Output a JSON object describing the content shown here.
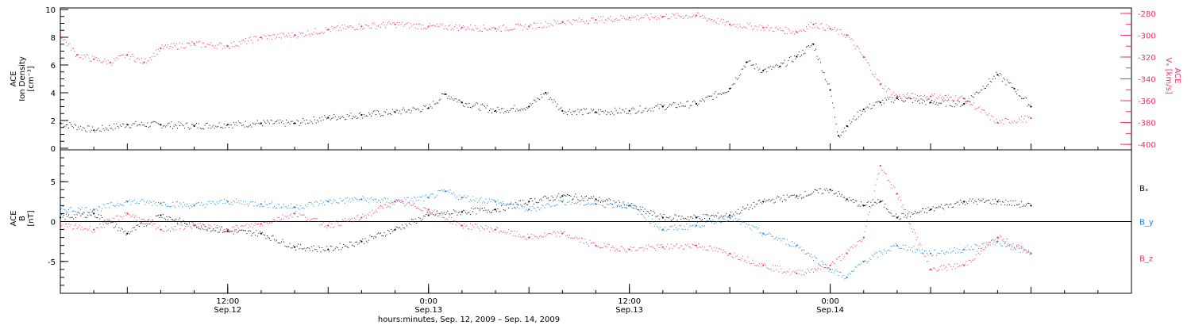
{
  "colors": {
    "black": "#000000",
    "pink": "#e8336b",
    "blue": "#1a7fd0",
    "frame": "#000000",
    "background": "#ffffff"
  },
  "chart_data": [
    {
      "type": "scatter",
      "title": "",
      "x_unit": "hours since Sep. 12, 2009 02:00",
      "xlim": [
        0,
        64
      ],
      "y_axes": {
        "left": {
          "label_lines": [
            "ACE",
            "Ion Density",
            "[cm⁻³]"
          ],
          "ylim": [
            0,
            10
          ],
          "ticks": [
            0,
            2,
            4,
            6,
            8,
            10
          ]
        },
        "right": {
          "label_lines": [
            "ACE",
            "Vₓ [km/s]"
          ],
          "ylim": [
            -405,
            -275
          ],
          "ticks": [
            -280,
            -300,
            -320,
            -340,
            -360,
            -380,
            -400
          ]
        }
      },
      "series": [
        {
          "name": "",
          "axis": "left",
          "color": "#000000",
          "points": [
            [
              0,
              1.8
            ],
            [
              2,
              1.3
            ],
            [
              4,
              1.7
            ],
            [
              6,
              1.7
            ],
            [
              8,
              1.6
            ],
            [
              10,
              1.7
            ],
            [
              12,
              1.8
            ],
            [
              14,
              1.8
            ],
            [
              16,
              2.2
            ],
            [
              18,
              2.4
            ],
            [
              20,
              2.6
            ],
            [
              22,
              2.9
            ],
            [
              23,
              3.9
            ],
            [
              24,
              3.3
            ],
            [
              26,
              2.7
            ],
            [
              28,
              3.0
            ],
            [
              29,
              4.0
            ],
            [
              30,
              2.7
            ],
            [
              32,
              2.6
            ],
            [
              34,
              2.7
            ],
            [
              36,
              3.0
            ],
            [
              38,
              3.2
            ],
            [
              40,
              4.3
            ],
            [
              41,
              6.2
            ],
            [
              42,
              5.6
            ],
            [
              43,
              5.9
            ],
            [
              44,
              6.6
            ],
            [
              45,
              7.5
            ],
            [
              46,
              4.2
            ],
            [
              46.5,
              0.9
            ],
            [
              47,
              1.6
            ],
            [
              48,
              2.8
            ],
            [
              49,
              3.3
            ],
            [
              50,
              3.6
            ],
            [
              52,
              3.3
            ],
            [
              54,
              3.2
            ],
            [
              56,
              5.3
            ],
            [
              57,
              4.3
            ],
            [
              58,
              3.0
            ]
          ]
        },
        {
          "name": "",
          "axis": "right",
          "color": "#e8336b",
          "points": [
            [
              0,
              -300
            ],
            [
              1,
              -318
            ],
            [
              2,
              -322
            ],
            [
              3,
              -325
            ],
            [
              4,
              -318
            ],
            [
              5,
              -325
            ],
            [
              6,
              -312
            ],
            [
              8,
              -308
            ],
            [
              10,
              -310
            ],
            [
              12,
              -302
            ],
            [
              14,
              -300
            ],
            [
              16,
              -295
            ],
            [
              18,
              -292
            ],
            [
              20,
              -290
            ],
            [
              22,
              -292
            ],
            [
              24,
              -293
            ],
            [
              26,
              -294
            ],
            [
              28,
              -292
            ],
            [
              30,
              -288
            ],
            [
              32,
              -286
            ],
            [
              34,
              -284
            ],
            [
              36,
              -283
            ],
            [
              38,
              -282
            ],
            [
              40,
              -290
            ],
            [
              42,
              -293
            ],
            [
              44,
              -297
            ],
            [
              45,
              -290
            ],
            [
              46,
              -294
            ],
            [
              47,
              -300
            ],
            [
              48,
              -320
            ],
            [
              49,
              -345
            ],
            [
              50,
              -356
            ],
            [
              52,
              -356
            ],
            [
              54,
              -358
            ],
            [
              56,
              -380
            ],
            [
              58,
              -376
            ]
          ]
        }
      ]
    },
    {
      "type": "scatter",
      "title": "",
      "x_unit": "hours since Sep. 12, 2009 02:00",
      "xlim": [
        0,
        64
      ],
      "y_axes": {
        "left": {
          "label_lines": [
            "ACE",
            "B",
            "[nT]"
          ],
          "ylim": [
            -9,
            9
          ],
          "ticks": [
            -5,
            0,
            5
          ]
        }
      },
      "zero_line": true,
      "series": [
        {
          "name": "Bₓ",
          "color": "#000000",
          "points": [
            [
              0,
              0.5
            ],
            [
              2,
              1.0
            ],
            [
              4,
              -1.5
            ],
            [
              6,
              0.8
            ],
            [
              8,
              -0.5
            ],
            [
              10,
              -1.2
            ],
            [
              12,
              -1.5
            ],
            [
              14,
              -3.2
            ],
            [
              16,
              -3.5
            ],
            [
              18,
              -2.5
            ],
            [
              20,
              -1.0
            ],
            [
              22,
              0.8
            ],
            [
              24,
              1.2
            ],
            [
              26,
              1.5
            ],
            [
              28,
              2.5
            ],
            [
              30,
              3.2
            ],
            [
              32,
              2.8
            ],
            [
              34,
              2.0
            ],
            [
              36,
              0.5
            ],
            [
              38,
              0.5
            ],
            [
              40,
              0.8
            ],
            [
              42,
              2.5
            ],
            [
              44,
              3.2
            ],
            [
              46,
              4.0
            ],
            [
              47,
              2.8
            ],
            [
              48,
              2.0
            ],
            [
              49,
              2.5
            ],
            [
              50,
              0.5
            ],
            [
              52,
              1.5
            ],
            [
              54,
              2.5
            ],
            [
              56,
              2.5
            ],
            [
              58,
              2.0
            ]
          ]
        },
        {
          "name": "B_y",
          "color": "#1a7fd0",
          "points": [
            [
              0,
              1.5
            ],
            [
              2,
              1.5
            ],
            [
              4,
              2.5
            ],
            [
              6,
              2.3
            ],
            [
              8,
              2.0
            ],
            [
              10,
              2.5
            ],
            [
              12,
              2.2
            ],
            [
              14,
              1.8
            ],
            [
              16,
              2.5
            ],
            [
              18,
              2.8
            ],
            [
              20,
              2.5
            ],
            [
              22,
              3.0
            ],
            [
              23,
              3.8
            ],
            [
              24,
              3.0
            ],
            [
              26,
              2.5
            ],
            [
              28,
              1.5
            ],
            [
              30,
              2.5
            ],
            [
              32,
              2.2
            ],
            [
              34,
              2.0
            ],
            [
              36,
              -1.0
            ],
            [
              38,
              -0.5
            ],
            [
              40,
              0.5
            ],
            [
              42,
              -1.5
            ],
            [
              44,
              -3.0
            ],
            [
              46,
              -6.0
            ],
            [
              47,
              -7.0
            ],
            [
              48,
              -5.0
            ],
            [
              50,
              -3.0
            ],
            [
              52,
              -4.0
            ],
            [
              54,
              -3.5
            ],
            [
              56,
              -2.5
            ],
            [
              58,
              -4.0
            ]
          ]
        },
        {
          "name": "B_z",
          "color": "#e8336b",
          "points": [
            [
              0,
              -0.5
            ],
            [
              2,
              -1.0
            ],
            [
              4,
              1.0
            ],
            [
              6,
              -1.0
            ],
            [
              8,
              -0.5
            ],
            [
              10,
              -1.0
            ],
            [
              12,
              -0.3
            ],
            [
              14,
              1.0
            ],
            [
              16,
              -0.5
            ],
            [
              18,
              0.5
            ],
            [
              20,
              2.5
            ],
            [
              22,
              1.5
            ],
            [
              24,
              -0.5
            ],
            [
              26,
              -1.0
            ],
            [
              28,
              -2.0
            ],
            [
              30,
              -1.5
            ],
            [
              32,
              -3.0
            ],
            [
              34,
              -3.5
            ],
            [
              36,
              -3.2
            ],
            [
              38,
              -3.0
            ],
            [
              40,
              -4.0
            ],
            [
              42,
              -5.5
            ],
            [
              44,
              -6.5
            ],
            [
              46,
              -5.5
            ],
            [
              47,
              -4.0
            ],
            [
              48,
              -2.0
            ],
            [
              49,
              7.0
            ],
            [
              50,
              3.5
            ],
            [
              52,
              -6.0
            ],
            [
              54,
              -5.5
            ],
            [
              56,
              -2.0
            ],
            [
              58,
              -4.0
            ]
          ]
        }
      ],
      "legend": {
        "placement": "right",
        "entries": [
          {
            "label": "Bₓ",
            "color": "#000000"
          },
          {
            "label": "B_y",
            "color": "#1a7fd0"
          },
          {
            "label": "B_z",
            "color": "#e8336b"
          }
        ]
      }
    }
  ],
  "x_axis": {
    "tick_labels": [
      {
        "hours": 10,
        "time": "12:00",
        "date": "Sep.12"
      },
      {
        "hours": 22,
        "time": "0:00",
        "date": "Sep.13"
      },
      {
        "hours": 34,
        "time": "12:00",
        "date": "Sep.13"
      },
      {
        "hours": 46,
        "time": "0:00",
        "date": "Sep.14"
      }
    ],
    "xlabel": "hours:minutes, Sep. 12, 2009 – Sep. 14, 2009"
  }
}
